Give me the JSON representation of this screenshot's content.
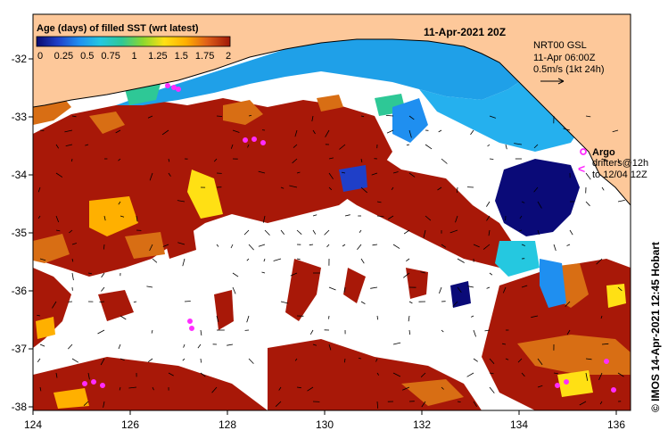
{
  "map": {
    "title": "11-Apr-2021 20Z",
    "colorbar": {
      "title": "Age (days) of filled SST (wrt latest)",
      "ticks": [
        "0",
        "0.25",
        "0.5",
        "0.75",
        "1",
        "1.25",
        "1.5",
        "1.75",
        "2"
      ],
      "colors": [
        "#0a0a6e",
        "#1f3fc8",
        "#1f8ff0",
        "#25c8e0",
        "#2ec896",
        "#8cd82e",
        "#ffe014",
        "#ffb000",
        "#e06018",
        "#a01808"
      ]
    },
    "nrt_note": {
      "line1": "NRT00 GSL",
      "line2": "11-Apr 06:00Z",
      "line3": "0.5m/s (1kt 24h)"
    },
    "argo_legend": {
      "label": "Argo",
      "drifters_line1": "drifters@12h",
      "drifters_line2": "to 12/04 12Z",
      "drifter_symbol": "<"
    },
    "credit": "© IMOS 14-Apr-2021 12:45 Hobart",
    "x_ticks": [
      "124",
      "126",
      "128",
      "130",
      "132",
      "134",
      "136"
    ],
    "y_ticks": [
      "-32",
      "-33",
      "-34",
      "-35",
      "-36",
      "-37",
      "-38"
    ],
    "colors": {
      "land": "#fdc89a",
      "old_sst": "#a81808",
      "mid_age": "#d86e14",
      "recent_cyan": "#1fa0e8",
      "fresh_blue": "#0a0a78",
      "argo_magenta": "#ff2cff"
    }
  }
}
